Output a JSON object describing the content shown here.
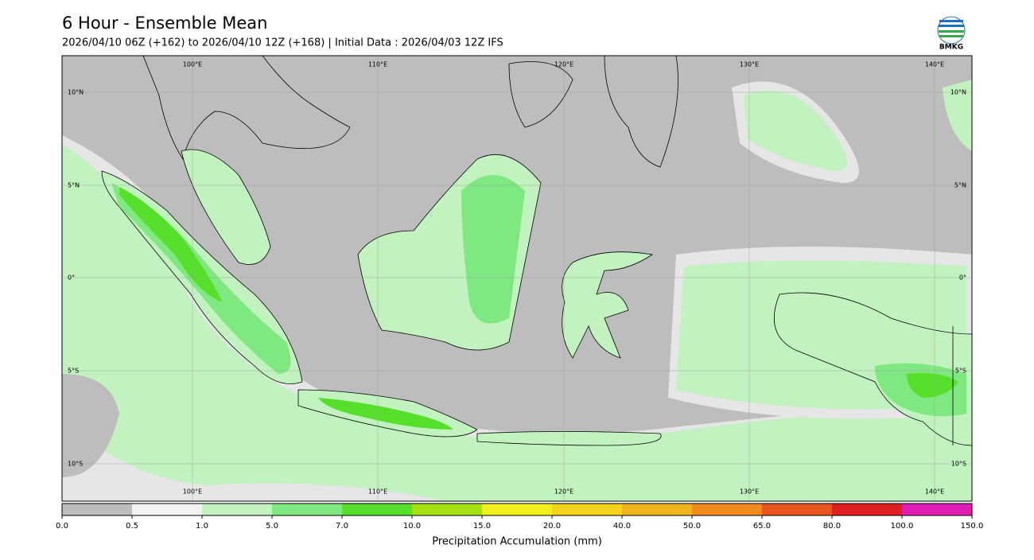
{
  "header": {
    "title": "6 Hour - Ensemble Mean",
    "subtitle": "2026/04/10 06Z (+162) to 2026/04/10 12Z (+168) | Initial Data : 2026/04/03 12Z IFS",
    "logo_text": "BMKG"
  },
  "map": {
    "lon_labels": [
      "100°E",
      "110°E",
      "120°E",
      "130°E",
      "140°E"
    ],
    "lat_labels": [
      "10°N",
      "5°N",
      "0°",
      "5°S",
      "10°S"
    ]
  },
  "colorbar": {
    "label": "Precipitation Accumulation (mm)",
    "ticks": [
      "0.0",
      "0.5",
      "1.0",
      "5.0",
      "7.0",
      "10.0",
      "15.0",
      "20.0",
      "40.0",
      "50.0",
      "65.0",
      "80.0",
      "100.0",
      "150.0"
    ],
    "colors": [
      "#bdbdbd",
      "#f2f2f2",
      "#c2f2c0",
      "#80e880",
      "#56e02c",
      "#a4e012",
      "#f2f01c",
      "#f2d21a",
      "#f0b41c",
      "#f08a1e",
      "#e8561e",
      "#e02020",
      "#e01cb4"
    ]
  }
}
